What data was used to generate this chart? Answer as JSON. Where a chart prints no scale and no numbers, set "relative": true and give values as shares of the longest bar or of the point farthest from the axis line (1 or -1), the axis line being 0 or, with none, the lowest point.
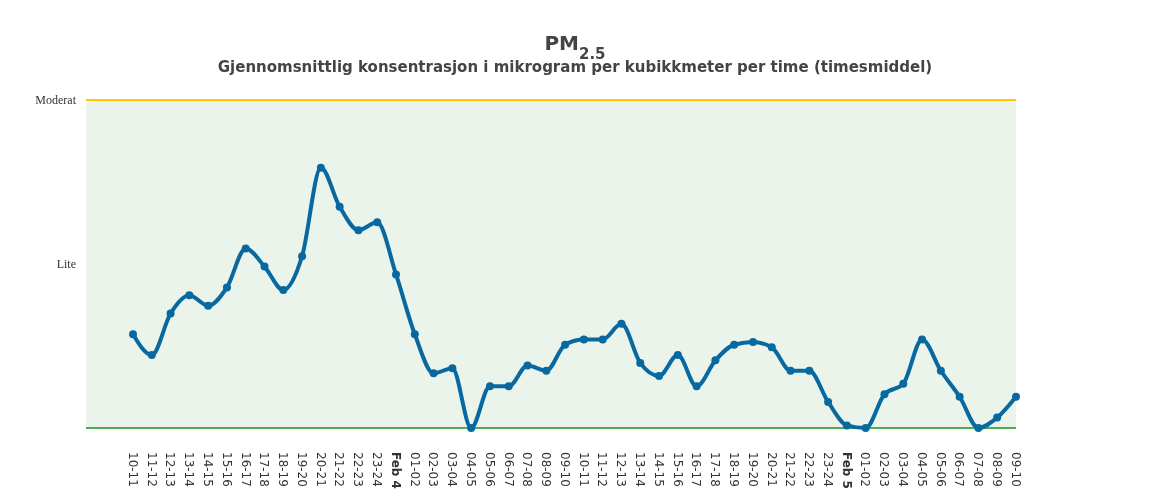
{
  "chart_data": {
    "type": "line",
    "title": "PM$_{2.5}$",
    "subtitle": "Gjennomsnittlig konsentrasjon i mikrogram per kubikkmeter per time (timesmiddel)",
    "categories": [
      "10-11",
      "11-12",
      "12-13",
      "13-14",
      "14-15",
      "15-16",
      "16-17",
      "17-18",
      "18-19",
      "19-20",
      "20-21",
      "21-22",
      "22-23",
      "23-24",
      "Feb 4",
      "01-02",
      "02-03",
      "03-04",
      "04-05",
      "05-06",
      "06-07",
      "07-08",
      "08-09",
      "09-10",
      "10-11",
      "11-12",
      "12-13",
      "13-14",
      "14-15",
      "15-16",
      "16-17",
      "17-18",
      "18-19",
      "19-20",
      "20-21",
      "21-22",
      "22-23",
      "23-24",
      "Feb 5",
      "01-02",
      "02-03",
      "03-04",
      "04-05",
      "05-06",
      "06-07",
      "07-08",
      "08-09",
      "09-10"
    ],
    "relative": true,
    "series": [
      {
        "color": "#0868a0",
        "values": [
          0.36,
          0.28,
          0.44,
          0.51,
          0.47,
          0.54,
          0.69,
          0.62,
          0.53,
          0.66,
          1,
          0.85,
          0.76,
          0.79,
          0.59,
          0.36,
          0.21,
          0.23,
          0,
          0.16,
          0.16,
          0.24,
          0.22,
          0.32,
          0.34,
          0.34,
          0.4,
          0.25,
          0.2,
          0.28,
          0.16,
          0.26,
          0.32,
          0.33,
          0.31,
          0.22,
          0.22,
          0.1,
          0.01,
          0,
          0.13,
          0.17,
          0.34,
          0.22,
          0.12,
          0,
          0.04,
          0.12
        ]
      }
    ],
    "bands": [
      {
        "axis": "y",
        "from": 0,
        "to": 1.26,
        "label": "Lite",
        "color": "#eaf4ea"
      }
    ],
    "ref_lines": [
      {
        "axis": "y",
        "value": 1.26,
        "label": "Moderat",
        "color": "#ffc800"
      }
    ],
    "marker": "circle"
  }
}
